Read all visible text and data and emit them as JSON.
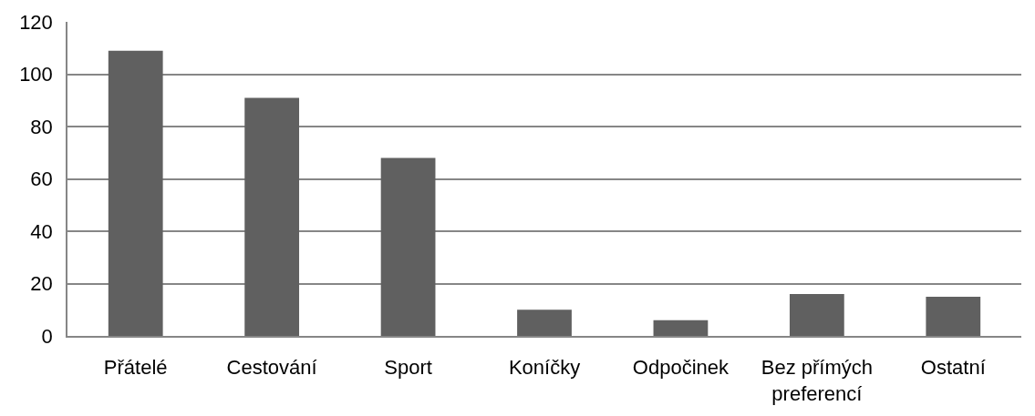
{
  "chart_data": {
    "type": "bar",
    "categories": [
      "Přátelé",
      "Cestování",
      "Sport",
      "Koníčky",
      "Odpočinek",
      "Bez přímých preferencí",
      "Ostatní"
    ],
    "values": [
      109,
      91,
      68,
      10,
      6,
      16,
      15
    ],
    "color": "#606060",
    "ylim": [
      0,
      120
    ],
    "yticks": [
      0,
      20,
      40,
      60,
      80,
      100,
      120
    ],
    "grid": "y"
  }
}
